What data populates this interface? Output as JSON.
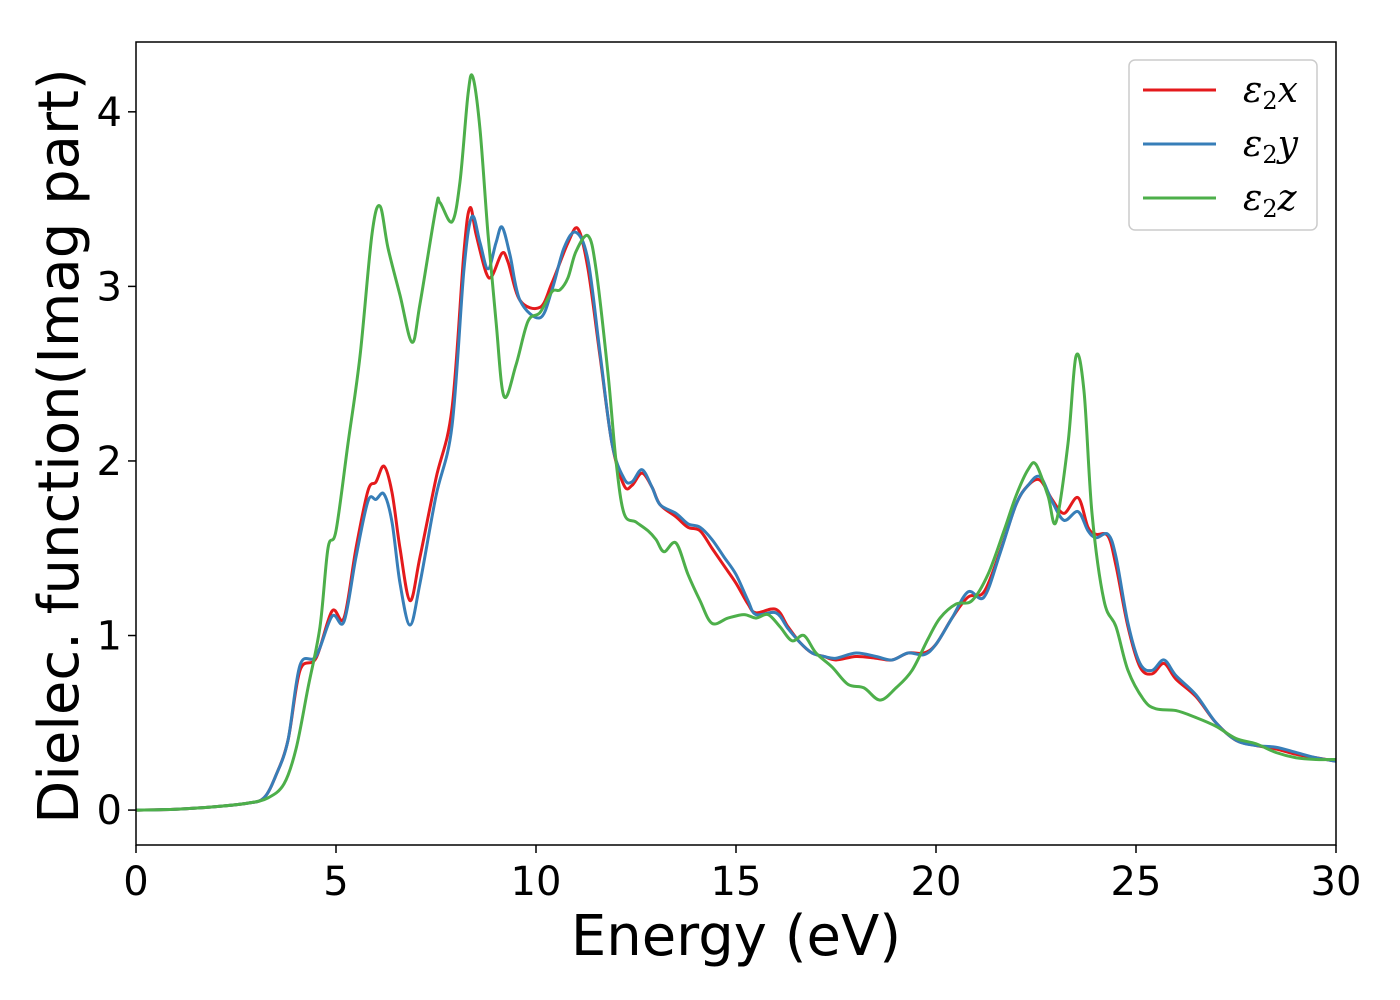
{
  "chart_data": {
    "type": "line",
    "title": "",
    "xlabel": "Energy (eV)",
    "ylabel": "Dielec. function(Imag part)",
    "xlim": [
      0,
      30
    ],
    "ylim": [
      -0.2,
      4.4
    ],
    "xticks": [
      0,
      5,
      10,
      15,
      20,
      25,
      30
    ],
    "yticks": [
      0,
      1,
      2,
      3,
      4
    ],
    "grid": false,
    "legend_position": "top-right",
    "series": [
      {
        "name": "ε2x",
        "base": "ε",
        "sub": "2",
        "suffix": "x",
        "color": "#e41a1c",
        "points": [
          [
            0,
            0
          ],
          [
            1,
            0.005
          ],
          [
            2,
            0.02
          ],
          [
            2.8,
            0.04
          ],
          [
            3.2,
            0.07
          ],
          [
            3.5,
            0.2
          ],
          [
            3.8,
            0.4
          ],
          [
            4.1,
            0.8
          ],
          [
            4.5,
            0.87
          ],
          [
            4.9,
            1.14
          ],
          [
            5.2,
            1.1
          ],
          [
            5.5,
            1.5
          ],
          [
            5.8,
            1.83
          ],
          [
            6.0,
            1.88
          ],
          [
            6.2,
            1.97
          ],
          [
            6.4,
            1.82
          ],
          [
            6.6,
            1.5
          ],
          [
            6.85,
            1.2
          ],
          [
            7.1,
            1.45
          ],
          [
            7.5,
            1.9
          ],
          [
            7.9,
            2.3
          ],
          [
            8.2,
            3.2
          ],
          [
            8.35,
            3.45
          ],
          [
            8.5,
            3.3
          ],
          [
            8.75,
            3.08
          ],
          [
            8.9,
            3.06
          ],
          [
            9.15,
            3.19
          ],
          [
            9.3,
            3.14
          ],
          [
            9.6,
            2.92
          ],
          [
            10.1,
            2.88
          ],
          [
            10.4,
            3.02
          ],
          [
            10.8,
            3.25
          ],
          [
            11.05,
            3.33
          ],
          [
            11.3,
            3.1
          ],
          [
            11.6,
            2.6
          ],
          [
            11.9,
            2.1
          ],
          [
            12.2,
            1.86
          ],
          [
            12.4,
            1.86
          ],
          [
            12.65,
            1.93
          ],
          [
            12.9,
            1.85
          ],
          [
            13.1,
            1.75
          ],
          [
            13.5,
            1.68
          ],
          [
            13.8,
            1.62
          ],
          [
            14.1,
            1.6
          ],
          [
            14.4,
            1.5
          ],
          [
            14.7,
            1.4
          ],
          [
            15.0,
            1.3
          ],
          [
            15.3,
            1.18
          ],
          [
            15.5,
            1.13
          ],
          [
            16.0,
            1.15
          ],
          [
            16.3,
            1.05
          ],
          [
            16.6,
            0.96
          ],
          [
            16.9,
            0.9
          ],
          [
            17.2,
            0.88
          ],
          [
            17.5,
            0.86
          ],
          [
            18.0,
            0.88
          ],
          [
            18.5,
            0.87
          ],
          [
            18.9,
            0.86
          ],
          [
            19.3,
            0.9
          ],
          [
            19.7,
            0.9
          ],
          [
            20.0,
            0.95
          ],
          [
            20.4,
            1.1
          ],
          [
            20.8,
            1.22
          ],
          [
            21.2,
            1.25
          ],
          [
            21.6,
            1.48
          ],
          [
            22.0,
            1.75
          ],
          [
            22.3,
            1.86
          ],
          [
            22.6,
            1.89
          ],
          [
            22.9,
            1.78
          ],
          [
            23.2,
            1.7
          ],
          [
            23.55,
            1.79
          ],
          [
            23.8,
            1.62
          ],
          [
            24.0,
            1.58
          ],
          [
            24.3,
            1.57
          ],
          [
            24.5,
            1.4
          ],
          [
            24.8,
            1.05
          ],
          [
            25.1,
            0.82
          ],
          [
            25.4,
            0.78
          ],
          [
            25.7,
            0.84
          ],
          [
            26.0,
            0.75
          ],
          [
            26.5,
            0.65
          ],
          [
            27.0,
            0.5
          ],
          [
            27.5,
            0.4
          ],
          [
            28.0,
            0.37
          ],
          [
            28.5,
            0.35
          ],
          [
            29.0,
            0.32
          ],
          [
            29.5,
            0.3
          ],
          [
            30,
            0.28
          ]
        ]
      },
      {
        "name": "ε2y",
        "base": "ε",
        "sub": "2",
        "suffix": "y",
        "color": "#377eb8",
        "points": [
          [
            0,
            0
          ],
          [
            1,
            0.005
          ],
          [
            2,
            0.02
          ],
          [
            2.8,
            0.04
          ],
          [
            3.2,
            0.07
          ],
          [
            3.5,
            0.2
          ],
          [
            3.8,
            0.4
          ],
          [
            4.1,
            0.83
          ],
          [
            4.5,
            0.88
          ],
          [
            4.9,
            1.11
          ],
          [
            5.2,
            1.08
          ],
          [
            5.5,
            1.45
          ],
          [
            5.8,
            1.77
          ],
          [
            6.0,
            1.78
          ],
          [
            6.2,
            1.81
          ],
          [
            6.4,
            1.65
          ],
          [
            6.6,
            1.3
          ],
          [
            6.85,
            1.06
          ],
          [
            7.1,
            1.3
          ],
          [
            7.5,
            1.8
          ],
          [
            7.9,
            2.2
          ],
          [
            8.2,
            3.1
          ],
          [
            8.4,
            3.4
          ],
          [
            8.6,
            3.25
          ],
          [
            8.8,
            3.1
          ],
          [
            9.0,
            3.25
          ],
          [
            9.15,
            3.34
          ],
          [
            9.35,
            3.18
          ],
          [
            9.6,
            2.92
          ],
          [
            10.1,
            2.82
          ],
          [
            10.4,
            2.98
          ],
          [
            10.7,
            3.22
          ],
          [
            11.0,
            3.31
          ],
          [
            11.3,
            3.15
          ],
          [
            11.6,
            2.62
          ],
          [
            11.9,
            2.1
          ],
          [
            12.2,
            1.9
          ],
          [
            12.4,
            1.88
          ],
          [
            12.65,
            1.95
          ],
          [
            12.9,
            1.85
          ],
          [
            13.1,
            1.75
          ],
          [
            13.5,
            1.7
          ],
          [
            13.8,
            1.64
          ],
          [
            14.1,
            1.62
          ],
          [
            14.4,
            1.55
          ],
          [
            14.7,
            1.45
          ],
          [
            15.0,
            1.35
          ],
          [
            15.3,
            1.2
          ],
          [
            15.5,
            1.12
          ],
          [
            16.0,
            1.13
          ],
          [
            16.3,
            1.04
          ],
          [
            16.6,
            0.96
          ],
          [
            16.9,
            0.9
          ],
          [
            17.2,
            0.88
          ],
          [
            17.5,
            0.87
          ],
          [
            18.0,
            0.9
          ],
          [
            18.5,
            0.88
          ],
          [
            18.9,
            0.86
          ],
          [
            19.3,
            0.9
          ],
          [
            19.7,
            0.89
          ],
          [
            20.0,
            0.95
          ],
          [
            20.4,
            1.1
          ],
          [
            20.8,
            1.25
          ],
          [
            21.2,
            1.22
          ],
          [
            21.6,
            1.47
          ],
          [
            22.0,
            1.75
          ],
          [
            22.3,
            1.86
          ],
          [
            22.6,
            1.91
          ],
          [
            22.9,
            1.77
          ],
          [
            23.2,
            1.66
          ],
          [
            23.55,
            1.71
          ],
          [
            23.8,
            1.6
          ],
          [
            24.0,
            1.56
          ],
          [
            24.3,
            1.58
          ],
          [
            24.5,
            1.45
          ],
          [
            24.8,
            1.07
          ],
          [
            25.1,
            0.84
          ],
          [
            25.4,
            0.8
          ],
          [
            25.7,
            0.86
          ],
          [
            26.0,
            0.77
          ],
          [
            26.5,
            0.66
          ],
          [
            27.0,
            0.5
          ],
          [
            27.5,
            0.4
          ],
          [
            28.0,
            0.37
          ],
          [
            28.5,
            0.36
          ],
          [
            29.0,
            0.33
          ],
          [
            29.5,
            0.3
          ],
          [
            30,
            0.28
          ]
        ]
      },
      {
        "name": "ε2z",
        "base": "ε",
        "sub": "2",
        "suffix": "z",
        "color": "#4daf4a",
        "points": [
          [
            0,
            0
          ],
          [
            1,
            0.005
          ],
          [
            2,
            0.02
          ],
          [
            2.8,
            0.04
          ],
          [
            3.3,
            0.07
          ],
          [
            3.7,
            0.15
          ],
          [
            4.0,
            0.35
          ],
          [
            4.3,
            0.7
          ],
          [
            4.6,
            1.05
          ],
          [
            4.8,
            1.5
          ],
          [
            5.0,
            1.6
          ],
          [
            5.3,
            2.1
          ],
          [
            5.6,
            2.6
          ],
          [
            5.9,
            3.3
          ],
          [
            6.1,
            3.46
          ],
          [
            6.3,
            3.22
          ],
          [
            6.6,
            2.95
          ],
          [
            6.9,
            2.68
          ],
          [
            7.1,
            2.9
          ],
          [
            7.5,
            3.45
          ],
          [
            7.6,
            3.48
          ],
          [
            7.9,
            3.37
          ],
          [
            8.1,
            3.6
          ],
          [
            8.3,
            4.1
          ],
          [
            8.42,
            4.2
          ],
          [
            8.6,
            3.9
          ],
          [
            8.8,
            3.3
          ],
          [
            9.0,
            2.8
          ],
          [
            9.2,
            2.37
          ],
          [
            9.5,
            2.55
          ],
          [
            9.8,
            2.8
          ],
          [
            10.1,
            2.85
          ],
          [
            10.4,
            2.97
          ],
          [
            10.6,
            2.98
          ],
          [
            10.8,
            3.05
          ],
          [
            11.0,
            3.2
          ],
          [
            11.3,
            3.29
          ],
          [
            11.5,
            3.1
          ],
          [
            11.8,
            2.5
          ],
          [
            12.0,
            2.0
          ],
          [
            12.2,
            1.7
          ],
          [
            12.5,
            1.65
          ],
          [
            12.8,
            1.6
          ],
          [
            13.0,
            1.55
          ],
          [
            13.2,
            1.48
          ],
          [
            13.5,
            1.53
          ],
          [
            13.8,
            1.35
          ],
          [
            14.1,
            1.2
          ],
          [
            14.4,
            1.07
          ],
          [
            14.8,
            1.1
          ],
          [
            15.2,
            1.12
          ],
          [
            15.5,
            1.1
          ],
          [
            15.8,
            1.12
          ],
          [
            16.1,
            1.05
          ],
          [
            16.4,
            0.97
          ],
          [
            16.7,
            1.0
          ],
          [
            17.0,
            0.9
          ],
          [
            17.4,
            0.82
          ],
          [
            17.8,
            0.72
          ],
          [
            18.2,
            0.7
          ],
          [
            18.6,
            0.63
          ],
          [
            19.0,
            0.7
          ],
          [
            19.4,
            0.8
          ],
          [
            19.8,
            0.98
          ],
          [
            20.1,
            1.1
          ],
          [
            20.5,
            1.18
          ],
          [
            20.9,
            1.2
          ],
          [
            21.3,
            1.35
          ],
          [
            21.7,
            1.6
          ],
          [
            22.0,
            1.8
          ],
          [
            22.3,
            1.95
          ],
          [
            22.5,
            1.98
          ],
          [
            22.8,
            1.8
          ],
          [
            23.0,
            1.65
          ],
          [
            23.3,
            2.1
          ],
          [
            23.5,
            2.6
          ],
          [
            23.7,
            2.4
          ],
          [
            23.9,
            1.7
          ],
          [
            24.2,
            1.2
          ],
          [
            24.5,
            1.05
          ],
          [
            24.8,
            0.8
          ],
          [
            25.2,
            0.63
          ],
          [
            25.5,
            0.58
          ],
          [
            26.0,
            0.57
          ],
          [
            26.5,
            0.53
          ],
          [
            27.0,
            0.48
          ],
          [
            27.5,
            0.41
          ],
          [
            28.0,
            0.38
          ],
          [
            28.5,
            0.33
          ],
          [
            29.0,
            0.3
          ],
          [
            29.5,
            0.29
          ],
          [
            30,
            0.29
          ]
        ]
      }
    ]
  }
}
